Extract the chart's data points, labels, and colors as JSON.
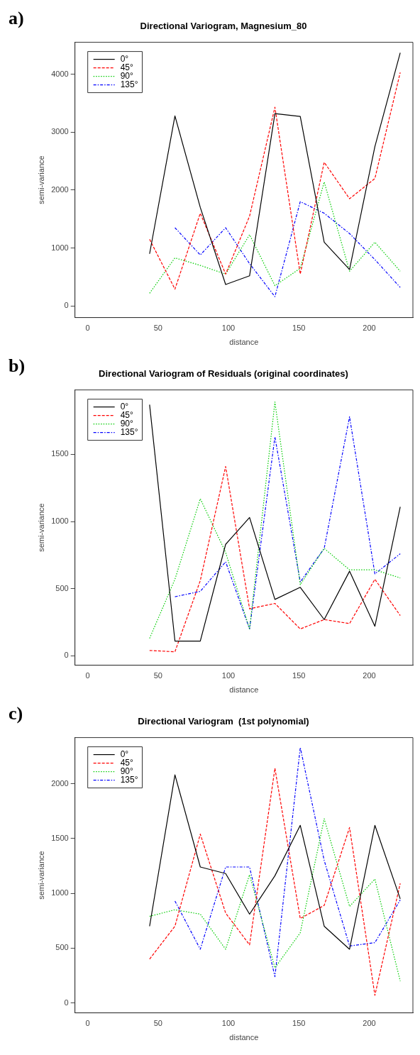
{
  "chart_data": [
    {
      "type": "line",
      "title": "Directional Variogram, Magnesium_80",
      "xlabel": "distance",
      "ylabel": "semi-variance",
      "annotations": [
        "a)"
      ],
      "legend": "top left",
      "grid": false,
      "x": [
        44,
        62,
        80,
        98,
        115,
        133,
        151,
        168,
        186,
        204,
        222
      ],
      "xlim": [
        -9,
        231
      ],
      "xticks": [
        0,
        50,
        100,
        150,
        200
      ],
      "ylim": [
        -200,
        4550
      ],
      "yticks": [
        0,
        1000,
        2000,
        3000,
        4000
      ],
      "series": [
        {
          "name": "0°",
          "color": "#000000",
          "line_style": "solid",
          "values": [
            900,
            3280,
            1700,
            370,
            520,
            3320,
            3270,
            1100,
            630,
            2750,
            4370
          ]
        },
        {
          "name": "45°",
          "color": "#ff0000",
          "line_style": "dashed",
          "values": [
            1150,
            290,
            1600,
            550,
            1550,
            3430,
            550,
            2480,
            1850,
            2200,
            4030
          ]
        },
        {
          "name": "90°",
          "color": "#00cd00",
          "line_style": "dotted",
          "values": [
            220,
            830,
            700,
            550,
            1230,
            350,
            650,
            2140,
            600,
            1100,
            600
          ]
        },
        {
          "name": "135°",
          "color": "#0000ff",
          "line_style": "dashdot",
          "values": [
            null,
            1350,
            880,
            1350,
            730,
            160,
            1800,
            1600,
            1250,
            800,
            320
          ]
        }
      ]
    },
    {
      "type": "line",
      "title": "Directional Variogram of Residuals (original coordinates)",
      "xlabel": "distance",
      "ylabel": "semi-variance",
      "annotations": [
        "b)"
      ],
      "legend": "top left",
      "grid": false,
      "x": [
        44,
        62,
        80,
        98,
        115,
        133,
        151,
        168,
        186,
        204,
        222
      ],
      "xlim": [
        -9,
        231
      ],
      "xticks": [
        0,
        50,
        100,
        150,
        200
      ],
      "ylim": [
        -70,
        1980
      ],
      "yticks": [
        0,
        500,
        1000,
        1500
      ],
      "series": [
        {
          "name": "0°",
          "color": "#000000",
          "line_style": "solid",
          "values": [
            1870,
            110,
            110,
            830,
            1030,
            420,
            510,
            270,
            630,
            220,
            1110
          ]
        },
        {
          "name": "45°",
          "color": "#ff0000",
          "line_style": "dashed",
          "values": [
            40,
            30,
            560,
            1410,
            350,
            390,
            200,
            270,
            240,
            570,
            300
          ]
        },
        {
          "name": "90°",
          "color": "#00cd00",
          "line_style": "dotted",
          "values": [
            130,
            570,
            1170,
            770,
            200,
            1890,
            530,
            800,
            640,
            640,
            580
          ]
        },
        {
          "name": "135°",
          "color": "#0000ff",
          "line_style": "dashdot",
          "values": [
            null,
            440,
            480,
            700,
            200,
            1630,
            550,
            800,
            1780,
            610,
            760
          ]
        }
      ]
    },
    {
      "type": "line",
      "title": "Directional Variogram  (1st polynomial)",
      "xlabel": "distance",
      "ylabel": "semi-variance",
      "annotations": [
        "c)"
      ],
      "legend": "top left",
      "grid": false,
      "x": [
        44,
        62,
        80,
        98,
        115,
        133,
        151,
        168,
        186,
        204,
        222
      ],
      "xlim": [
        -9,
        231
      ],
      "xticks": [
        0,
        50,
        100,
        150,
        200
      ],
      "ylim": [
        -90,
        2420
      ],
      "yticks": [
        0,
        500,
        1000,
        1500,
        2000
      ],
      "series": [
        {
          "name": "0°",
          "color": "#000000",
          "line_style": "solid",
          "values": [
            700,
            2080,
            1240,
            1180,
            810,
            1160,
            1620,
            700,
            490,
            1620,
            950
          ]
        },
        {
          "name": "45°",
          "color": "#ff0000",
          "line_style": "dashed",
          "values": [
            400,
            700,
            1540,
            820,
            530,
            2140,
            770,
            890,
            1600,
            70,
            1090
          ]
        },
        {
          "name": "90°",
          "color": "#00cd00",
          "line_style": "dotted",
          "values": [
            790,
            850,
            810,
            490,
            1170,
            320,
            640,
            1680,
            880,
            1130,
            200
          ]
        },
        {
          "name": "135°",
          "color": "#0000ff",
          "line_style": "dashdot",
          "values": [
            null,
            930,
            490,
            1240,
            1240,
            240,
            2330,
            1300,
            520,
            550,
            940
          ]
        }
      ]
    }
  ]
}
